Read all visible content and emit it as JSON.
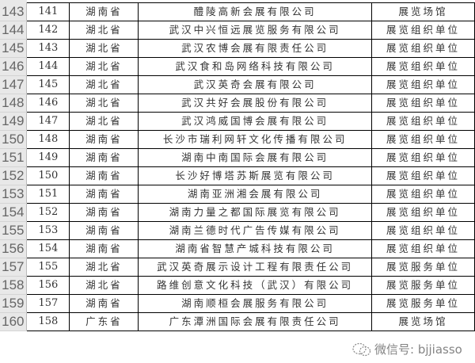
{
  "rows": [
    {
      "row": "143",
      "no": "141",
      "province": "湖南省",
      "company": "醴陵高新会展有限公司",
      "type": "展览场馆"
    },
    {
      "row": "144",
      "no": "142",
      "province": "湖北省",
      "company": "武汉中兴恒远展览服务有限公司",
      "type": "展览组织单位"
    },
    {
      "row": "145",
      "no": "143",
      "province": "湖北省",
      "company": "武汉农博会展有限责任公司",
      "type": "展览组织单位"
    },
    {
      "row": "146",
      "no": "144",
      "province": "湖北省",
      "company": "武汉食和岛网络科技有限公司",
      "type": "展览组织单位"
    },
    {
      "row": "147",
      "no": "145",
      "province": "湖北省",
      "company": "武汉英奇会展有限公司",
      "type": "展览组织单位"
    },
    {
      "row": "148",
      "no": "146",
      "province": "湖北省",
      "company": "武汉共好会展股份有限公司",
      "type": "展览组织单位"
    },
    {
      "row": "149",
      "no": "147",
      "province": "湖北省",
      "company": "武汉鸿威国博会展有限公司",
      "type": "展览组织单位"
    },
    {
      "row": "150",
      "no": "148",
      "province": "湖南省",
      "company": "长沙市瑞利网轩文化传播有限公司",
      "type": "展览组织单位"
    },
    {
      "row": "151",
      "no": "149",
      "province": "湖南省",
      "company": "湖南中南国际会展有限公司",
      "type": "展览组织单位"
    },
    {
      "row": "152",
      "no": "150",
      "province": "湖南省",
      "company": "长沙好博塔苏斯展览有限公司",
      "type": "展览组织单位"
    },
    {
      "row": "153",
      "no": "151",
      "province": "湖南省",
      "company": "湖南亚洲湘会展有限公司",
      "type": "展览组织单位"
    },
    {
      "row": "154",
      "no": "152",
      "province": "湖南省",
      "company": "湖南力量之都国际展览有限公司",
      "type": "展览组织单位"
    },
    {
      "row": "155",
      "no": "153",
      "province": "湖南省",
      "company": "湖南兰德时代广告传媒有限公司",
      "type": "展览组织单位"
    },
    {
      "row": "156",
      "no": "154",
      "province": "湖南省",
      "company": "湖南省智慧产城科技有限公司",
      "type": "展览组织单位"
    },
    {
      "row": "157",
      "no": "155",
      "province": "湖北省",
      "company": "武汉英奇展示设计工程有限责任公司",
      "type": "展览服务单位"
    },
    {
      "row": "158",
      "no": "156",
      "province": "湖北省",
      "company": "路维创意文化科技（武汉）有限公司",
      "type": "展览服务单位"
    },
    {
      "row": "159",
      "no": "157",
      "province": "湖南省",
      "company": "湖南顺桓会展服务有限公司",
      "type": "展览服务单位"
    },
    {
      "row": "160",
      "no": "158",
      "province": "广东省",
      "company": "广东潭洲国际会展有限责任公司",
      "type": "展览场馆"
    }
  ],
  "watermark": {
    "text": "微信号: bjjiasso",
    "icon": "wechat-icon"
  }
}
